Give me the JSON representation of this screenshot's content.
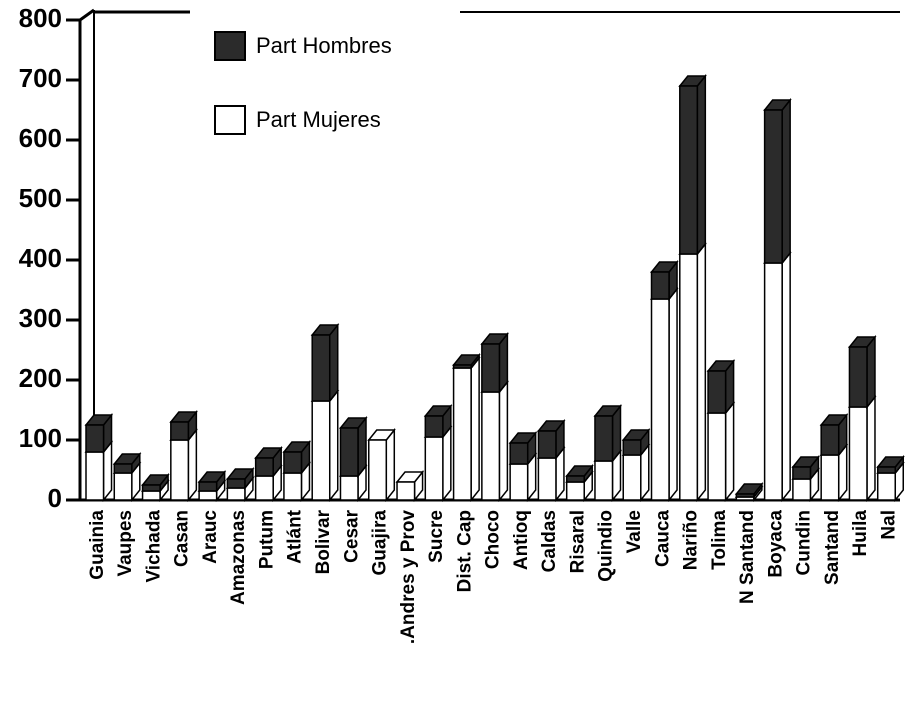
{
  "chart_data": {
    "type": "bar",
    "stacked": true,
    "legend": "top-left",
    "categories": [
      "Guainia",
      "Vaupes",
      "Vichada",
      "Casan",
      "Arauc",
      "Amazonas",
      "Putum",
      "Atlánt",
      "Bolivar",
      "Cesar",
      "Guajira",
      ".Andres y Prov",
      "Sucre",
      "Dist. Cap",
      "Choco",
      "Antioq",
      "Caldas",
      "Risaral",
      "Quindio",
      "Valle",
      "Cauca",
      "Nariño",
      "Tolima",
      "N Santand",
      "Boyaca",
      "Cundin",
      "Santand",
      "Huila",
      "Nal"
    ],
    "series": [
      {
        "name": "Part Hombres",
        "color": "#2b2b2b",
        "values": [
          45,
          15,
          10,
          30,
          15,
          15,
          30,
          35,
          110,
          80,
          0,
          0,
          35,
          5,
          80,
          35,
          45,
          10,
          75,
          25,
          45,
          280,
          70,
          5,
          255,
          20,
          50,
          100,
          10
        ]
      },
      {
        "name": "Part Mujeres",
        "color": "#ffffff",
        "values": [
          80,
          45,
          15,
          100,
          15,
          20,
          40,
          45,
          165,
          40,
          100,
          30,
          105,
          220,
          180,
          60,
          70,
          30,
          65,
          75,
          335,
          410,
          145,
          5,
          395,
          35,
          75,
          155,
          45
        ]
      }
    ],
    "ylim": [
      0,
      800
    ],
    "yticks": [
      0,
      100,
      200,
      300,
      400,
      500,
      600,
      700,
      800
    ]
  }
}
